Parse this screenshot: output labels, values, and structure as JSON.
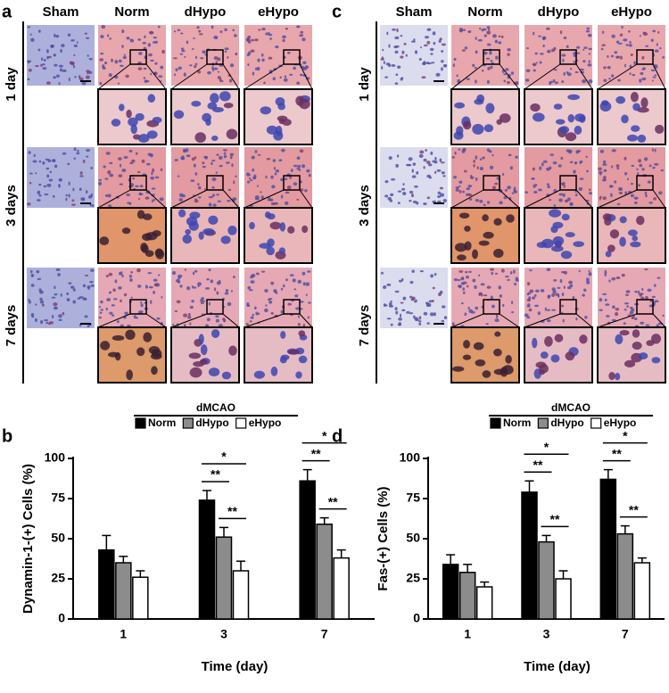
{
  "panel_labels": [
    "a",
    "b",
    "c",
    "d"
  ],
  "micrographs": [
    {
      "columns": [
        "Sham",
        "Norm",
        "dHypo",
        "eHypo"
      ],
      "rows": [
        "1 day",
        "3 days",
        "7 days"
      ]
    },
    {
      "columns": [
        "Sham",
        "Norm",
        "dHypo",
        "eHypo"
      ],
      "rows": [
        "1 day",
        "3 days",
        "7 days"
      ]
    }
  ],
  "chart_data": [
    {
      "type": "bar",
      "ylabel": "Dynamin-1-(+) Cells (%)",
      "xlabel": "Time (day)",
      "legend_title": "dMCAO",
      "categories": [
        "1",
        "3",
        "7"
      ],
      "series": [
        {
          "name": "Norm",
          "color": "#000000",
          "values": [
            43,
            74,
            86
          ],
          "errors": [
            9,
            6,
            7
          ]
        },
        {
          "name": "dHypo",
          "color": "#8c8c8c",
          "values": [
            35,
            51,
            59
          ],
          "errors": [
            4,
            6,
            4
          ]
        },
        {
          "name": "eHypo",
          "color": "#ffffff",
          "values": [
            26,
            30,
            38
          ],
          "errors": [
            4,
            6,
            5
          ]
        }
      ],
      "ylim": [
        0,
        100
      ],
      "yticks": [
        0,
        25,
        50,
        75,
        100
      ],
      "annotations": [
        [],
        [
          "*",
          "**",
          "**"
        ],
        [
          "*",
          "**",
          "**"
        ]
      ]
    },
    {
      "type": "bar",
      "ylabel": "Fas-(+) Cells (%)",
      "xlabel": "Time (day)",
      "legend_title": "dMCAO",
      "categories": [
        "1",
        "3",
        "7"
      ],
      "series": [
        {
          "name": "Norm",
          "color": "#000000",
          "values": [
            34,
            79,
            87
          ],
          "errors": [
            6,
            7,
            6
          ]
        },
        {
          "name": "dHypo",
          "color": "#8c8c8c",
          "values": [
            29,
            48,
            53
          ],
          "errors": [
            5,
            4,
            5
          ]
        },
        {
          "name": "eHypo",
          "color": "#ffffff",
          "values": [
            20,
            25,
            35
          ],
          "errors": [
            3,
            5,
            3
          ]
        }
      ],
      "ylim": [
        0,
        100
      ],
      "yticks": [
        0,
        25,
        50,
        75,
        100
      ],
      "annotations": [
        [],
        [
          "*",
          "**",
          "**"
        ],
        [
          "*",
          "**",
          "**"
        ]
      ]
    }
  ]
}
